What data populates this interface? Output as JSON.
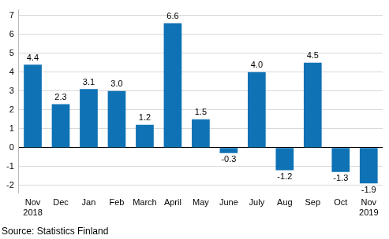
{
  "chart_data": {
    "type": "bar",
    "categories": [
      "Nov\n2018",
      "Dec",
      "Jan",
      "Feb",
      "March",
      "April",
      "May",
      "June",
      "July",
      "Aug",
      "Sep",
      "Oct",
      "Nov\n2019"
    ],
    "values": [
      4.4,
      2.3,
      3.1,
      3.0,
      1.2,
      6.6,
      1.5,
      -0.3,
      4.0,
      -1.2,
      4.5,
      -1.3,
      -1.9
    ],
    "value_labels": [
      "4.4",
      "2.3",
      "3.1",
      "3.0",
      "1.2",
      "6.6",
      "1.5",
      "-0.3",
      "4.0",
      "-1.2",
      "4.5",
      "-1.3",
      "-1.9"
    ],
    "color": "#0f72b5",
    "ylim": [
      -2.4,
      7.3
    ],
    "yticks": [
      -2,
      -1,
      0,
      1,
      2,
      3,
      4,
      5,
      6,
      7
    ],
    "grid": true,
    "data_labels": true,
    "source": "Source: Statistics Finland"
  }
}
